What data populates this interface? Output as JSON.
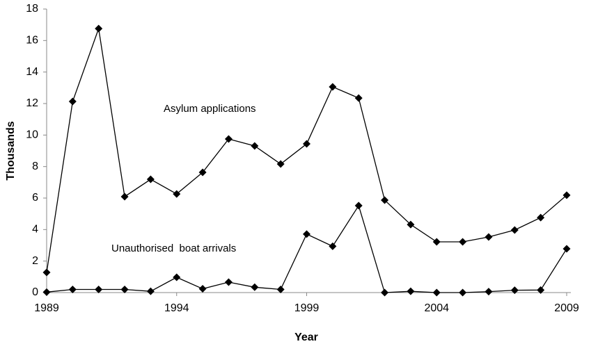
{
  "chart_data": {
    "type": "line",
    "x": [
      1989,
      1990,
      1991,
      1992,
      1993,
      1994,
      1995,
      1996,
      1997,
      1998,
      1999,
      2000,
      2001,
      2002,
      2003,
      2004,
      2005,
      2006,
      2007,
      2008,
      2009
    ],
    "series": [
      {
        "name": "Asylum applications",
        "color": "#000000",
        "values": [
          1.28,
          12.13,
          16.76,
          6.09,
          7.19,
          6.26,
          7.63,
          9.75,
          9.31,
          8.16,
          9.44,
          13.06,
          12.35,
          5.87,
          4.32,
          3.22,
          3.22,
          3.53,
          3.97,
          4.76,
          6.18
        ]
      },
      {
        "name": "Unauthorised  boat arrivals",
        "color": "#000000",
        "values": [
          0.03,
          0.2,
          0.2,
          0.2,
          0.08,
          0.97,
          0.24,
          0.66,
          0.34,
          0.2,
          3.71,
          2.94,
          5.52,
          0.0,
          0.08,
          0.0,
          0.0,
          0.06,
          0.15,
          0.16,
          2.78
        ]
      }
    ],
    "x_label": "Year",
    "y_label": "Thousands",
    "xlim": [
      1989,
      2009
    ],
    "xticks": [
      1989,
      1994,
      1999,
      2004,
      2009
    ],
    "ylim": [
      0,
      18
    ],
    "yticks": [
      0,
      2,
      4,
      6,
      8,
      10,
      12,
      14,
      16,
      18
    ]
  }
}
